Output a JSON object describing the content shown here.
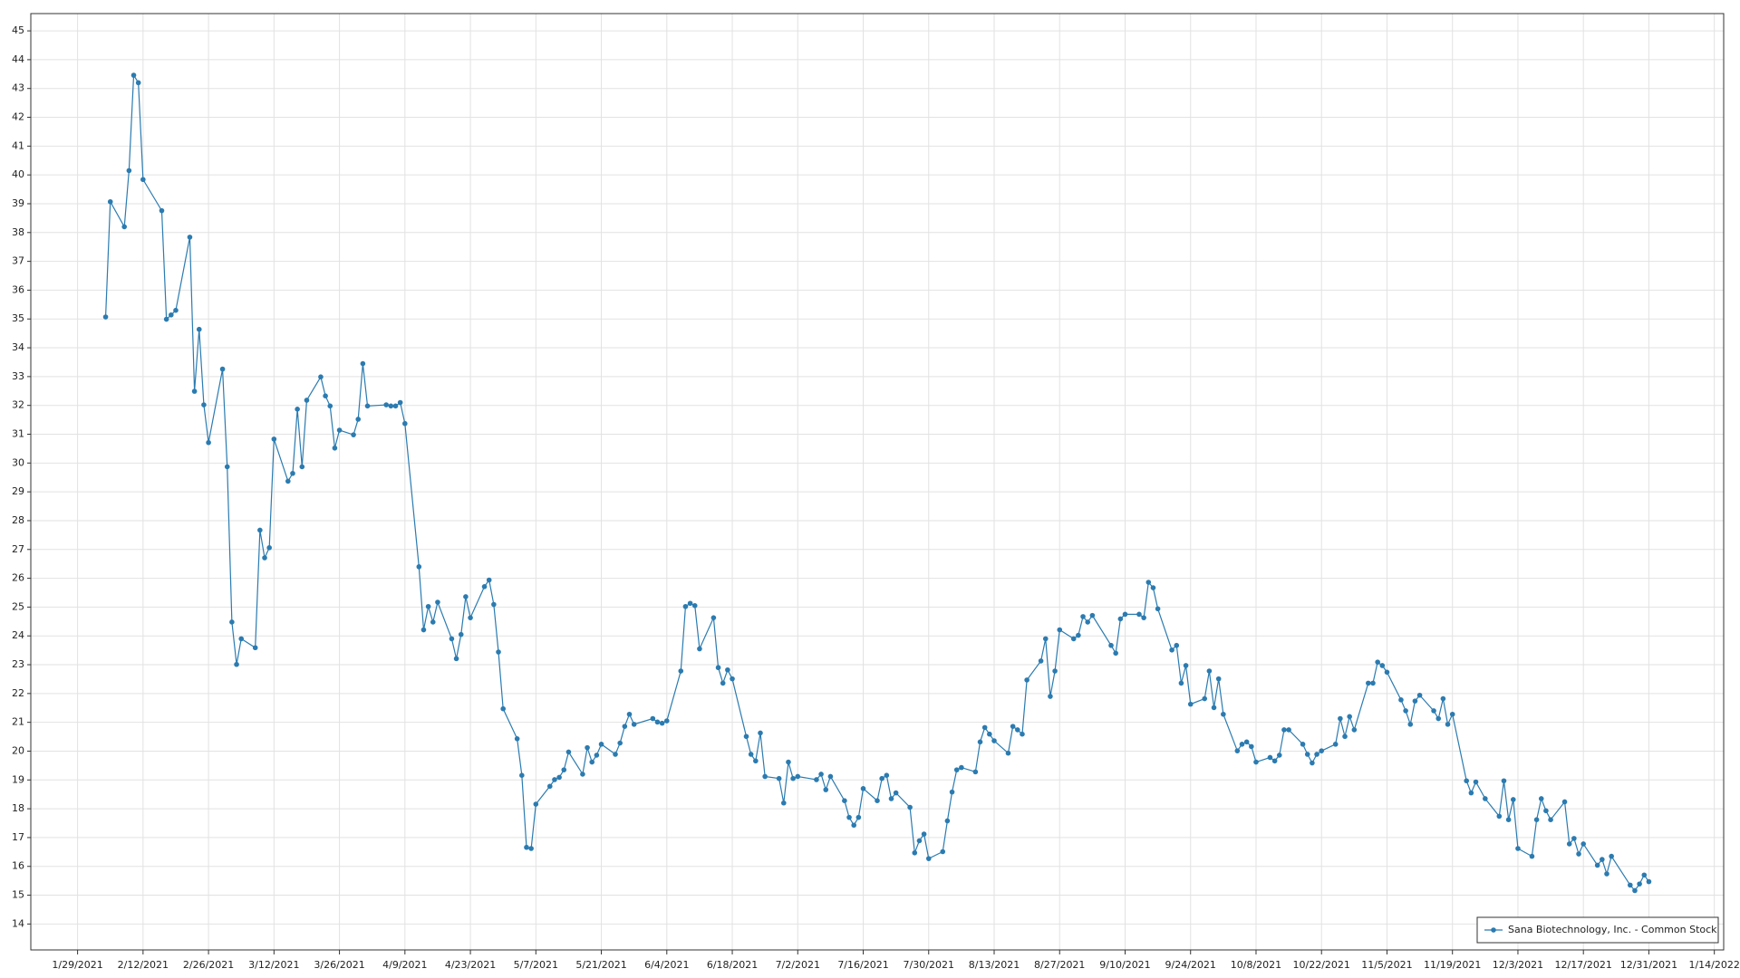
{
  "chart_data": {
    "type": "line",
    "x": [
      "2/4/2021",
      "2/5/2021",
      "2/8/2021",
      "2/9/2021",
      "2/10/2021",
      "2/11/2021",
      "2/12/2021",
      "2/16/2021",
      "2/17/2021",
      "2/18/2021",
      "2/19/2021",
      "2/22/2021",
      "2/23/2021",
      "2/24/2021",
      "2/25/2021",
      "2/26/2021",
      "3/1/2021",
      "3/2/2021",
      "3/3/2021",
      "3/4/2021",
      "3/5/2021",
      "3/8/2021",
      "3/9/2021",
      "3/10/2021",
      "3/11/2021",
      "3/12/2021",
      "3/15/2021",
      "3/16/2021",
      "3/17/2021",
      "3/18/2021",
      "3/19/2021",
      "3/22/2021",
      "3/23/2021",
      "3/24/2021",
      "3/25/2021",
      "3/26/2021",
      "3/29/2021",
      "3/30/2021",
      "3/31/2021",
      "4/1/2021",
      "4/5/2021",
      "4/6/2021",
      "4/7/2021",
      "4/8/2021",
      "4/9/2021",
      "4/12/2021",
      "4/13/2021",
      "4/14/2021",
      "4/15/2021",
      "4/16/2021",
      "4/19/2021",
      "4/20/2021",
      "4/21/2021",
      "4/22/2021",
      "4/23/2021",
      "4/26/2021",
      "4/27/2021",
      "4/28/2021",
      "4/29/2021",
      "4/30/2021",
      "5/3/2021",
      "5/4/2021",
      "5/5/2021",
      "5/6/2021",
      "5/7/2021",
      "5/10/2021",
      "5/11/2021",
      "5/12/2021",
      "5/13/2021",
      "5/14/2021",
      "5/17/2021",
      "5/18/2021",
      "5/19/2021",
      "5/20/2021",
      "5/21/2021",
      "5/24/2021",
      "5/25/2021",
      "5/26/2021",
      "5/27/2021",
      "5/28/2021",
      "6/1/2021",
      "6/2/2021",
      "6/3/2021",
      "6/4/2021",
      "6/7/2021",
      "6/8/2021",
      "6/9/2021",
      "6/10/2021",
      "6/11/2021",
      "6/14/2021",
      "6/15/2021",
      "6/16/2021",
      "6/17/2021",
      "6/18/2021",
      "6/21/2021",
      "6/22/2021",
      "6/23/2021",
      "6/24/2021",
      "6/25/2021",
      "6/28/2021",
      "6/29/2021",
      "6/30/2021",
      "7/1/2021",
      "7/2/2021",
      "7/6/2021",
      "7/7/2021",
      "7/8/2021",
      "7/9/2021",
      "7/12/2021",
      "7/13/2021",
      "7/14/2021",
      "7/15/2021",
      "7/16/2021",
      "7/19/2021",
      "7/20/2021",
      "7/21/2021",
      "7/22/2021",
      "7/23/2021",
      "7/26/2021",
      "7/27/2021",
      "7/28/2021",
      "7/29/2021",
      "7/30/2021",
      "8/2/2021",
      "8/3/2021",
      "8/4/2021",
      "8/5/2021",
      "8/6/2021",
      "8/9/2021",
      "8/10/2021",
      "8/11/2021",
      "8/12/2021",
      "8/13/2021",
      "8/16/2021",
      "8/17/2021",
      "8/18/2021",
      "8/19/2021",
      "8/20/2021",
      "8/23/2021",
      "8/24/2021",
      "8/25/2021",
      "8/26/2021",
      "8/27/2021",
      "8/30/2021",
      "8/31/2021",
      "9/1/2021",
      "9/2/2021",
      "9/3/2021",
      "9/7/2021",
      "9/8/2021",
      "9/9/2021",
      "9/10/2021",
      "9/13/2021",
      "9/14/2021",
      "9/15/2021",
      "9/16/2021",
      "9/17/2021",
      "9/20/2021",
      "9/21/2021",
      "9/22/2021",
      "9/23/2021",
      "9/24/2021",
      "9/27/2021",
      "9/28/2021",
      "9/29/2021",
      "9/30/2021",
      "10/1/2021",
      "10/4/2021",
      "10/5/2021",
      "10/6/2021",
      "10/7/2021",
      "10/8/2021",
      "10/11/2021",
      "10/12/2021",
      "10/13/2021",
      "10/14/2021",
      "10/15/2021",
      "10/18/2021",
      "10/19/2021",
      "10/20/2021",
      "10/21/2021",
      "10/22/2021",
      "10/25/2021",
      "10/26/2021",
      "10/27/2021",
      "10/28/2021",
      "10/29/2021",
      "11/1/2021",
      "11/2/2021",
      "11/3/2021",
      "11/4/2021",
      "11/5/2021",
      "11/8/2021",
      "11/9/2021",
      "11/10/2021",
      "11/11/2021",
      "11/12/2021",
      "11/15/2021",
      "11/16/2021",
      "11/17/2021",
      "11/18/2021",
      "11/19/2021",
      "11/22/2021",
      "11/23/2021",
      "11/24/2021",
      "11/26/2021",
      "11/29/2021",
      "11/30/2021",
      "12/1/2021",
      "12/2/2021",
      "12/3/2021",
      "12/6/2021",
      "12/7/2021",
      "12/8/2021",
      "12/9/2021",
      "12/10/2021",
      "12/13/2021",
      "12/14/2021",
      "12/15/2021",
      "12/16/2021",
      "12/17/2021",
      "12/20/2021",
      "12/21/2021",
      "12/22/2021",
      "12/23/2021",
      "12/27/2021",
      "12/28/2021",
      "12/29/2021",
      "12/30/2021",
      "12/31/2021"
    ],
    "series": [
      {
        "name": "Sana Biotechnology, Inc. - Common Stock",
        "color": "#2b7bb0",
        "values": [
          35.07,
          39.07,
          38.2,
          40.15,
          43.46,
          43.2,
          39.84,
          38.76,
          34.99,
          35.14,
          35.3,
          37.84,
          32.49,
          34.64,
          32.02,
          30.71,
          33.26,
          29.87,
          24.48,
          23.01,
          23.9,
          23.59,
          27.67,
          26.71,
          27.06,
          30.83,
          29.37,
          29.64,
          31.87,
          29.87,
          32.18,
          32.99,
          32.33,
          31.98,
          30.52,
          31.14,
          30.98,
          31.52,
          33.45,
          31.98,
          32.02,
          31.98,
          31.98,
          32.1,
          31.37,
          26.4,
          24.21,
          25.02,
          24.48,
          25.17,
          23.9,
          23.21,
          24.05,
          25.36,
          24.63,
          25.71,
          25.94,
          25.09,
          23.44,
          21.47,
          20.43,
          19.16,
          16.66,
          16.62,
          18.16,
          18.78,
          19.01,
          19.09,
          19.35,
          19.97,
          19.2,
          20.12,
          19.62,
          19.86,
          20.24,
          19.89,
          20.28,
          20.86,
          21.28,
          20.93,
          21.13,
          21.01,
          20.97,
          21.05,
          22.78,
          25.02,
          25.13,
          25.05,
          23.55,
          24.63,
          22.9,
          22.36,
          22.82,
          22.51,
          20.51,
          19.89,
          19.66,
          20.63,
          19.12,
          19.05,
          18.2,
          19.62,
          19.05,
          19.12,
          19.01,
          19.2,
          18.66,
          19.12,
          18.28,
          17.7,
          17.43,
          17.7,
          18.7,
          18.28,
          19.05,
          19.16,
          18.35,
          18.55,
          18.05,
          16.47,
          16.89,
          17.12,
          16.27,
          16.51,
          17.58,
          18.58,
          19.35,
          19.43,
          19.28,
          20.32,
          20.82,
          20.59,
          20.36,
          19.93,
          20.86,
          20.74,
          20.59,
          22.47,
          23.13,
          23.9,
          21.9,
          22.78,
          24.21,
          23.9,
          24.02,
          24.67,
          24.48,
          24.71,
          23.67,
          23.4,
          24.59,
          24.75,
          24.75,
          24.63,
          25.86,
          25.67,
          24.94,
          23.51,
          23.67,
          22.36,
          22.97,
          21.63,
          21.82,
          22.78,
          21.51,
          22.51,
          21.28,
          20.01,
          20.24,
          20.32,
          20.16,
          19.62,
          19.78,
          19.66,
          19.86,
          20.74,
          20.74,
          20.24,
          19.89,
          19.59,
          19.89,
          20.01,
          20.24,
          21.13,
          20.51,
          21.2,
          20.74,
          22.36,
          22.36,
          23.09,
          22.97,
          22.74,
          21.78,
          21.4,
          20.93,
          21.74,
          21.94,
          21.4,
          21.13,
          21.82,
          20.93,
          21.28,
          18.97,
          18.55,
          18.93,
          18.35,
          17.74,
          18.97,
          17.62,
          18.32,
          16.62,
          16.35,
          17.62,
          18.35,
          17.93,
          17.62,
          18.24,
          16.78,
          16.97,
          16.43,
          16.78,
          16.04,
          16.24,
          15.74,
          16.35,
          15.35,
          15.16,
          15.39,
          15.7,
          15.47
        ]
      }
    ],
    "xlim": [
      "1/19/2021",
      "1/16/2022"
    ],
    "xticks": [
      "1/29/2021",
      "2/12/2021",
      "2/26/2021",
      "3/12/2021",
      "3/26/2021",
      "4/9/2021",
      "4/23/2021",
      "5/7/2021",
      "5/21/2021",
      "6/4/2021",
      "6/18/2021",
      "7/2/2021",
      "7/16/2021",
      "7/30/2021",
      "8/13/2021",
      "8/27/2021",
      "9/10/2021",
      "9/24/2021",
      "10/8/2021",
      "10/22/2021",
      "11/5/2021",
      "11/19/2021",
      "12/3/2021",
      "12/17/2021",
      "12/31/2021",
      "1/14/2022"
    ],
    "ylim": [
      13.1,
      45.6
    ],
    "yticks": [
      14,
      15,
      16,
      17,
      18,
      19,
      20,
      21,
      22,
      23,
      24,
      25,
      26,
      27,
      28,
      29,
      30,
      31,
      32,
      33,
      34,
      35,
      36,
      37,
      38,
      39,
      40,
      41,
      42,
      43,
      44,
      45
    ],
    "grid": true,
    "legend": "lower right"
  }
}
